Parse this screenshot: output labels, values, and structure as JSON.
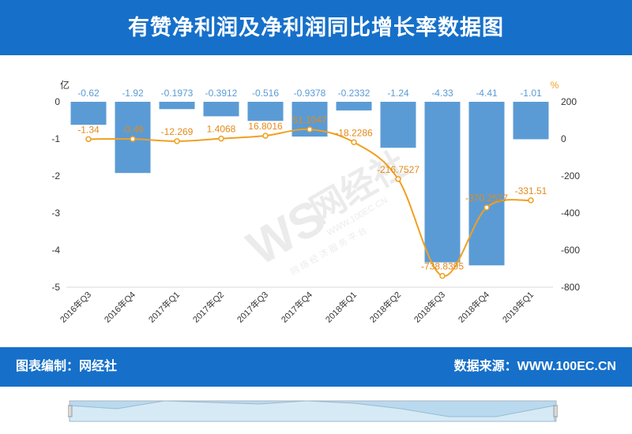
{
  "header": {
    "title": "有赞净利润及净利润同比增长率数据图"
  },
  "footer": {
    "left": "图表编制：网经社",
    "right": "数据来源：WWW.100EC.CN"
  },
  "watermark": {
    "brand_text": "网经社",
    "url": "WWW.100EC.CN",
    "slogan": "网 络 经 济 服 务 平 台"
  },
  "colors": {
    "band": "#1670c9",
    "bar": "#5b9bd5",
    "line": "#f0a020",
    "bar_label": "#5b9bd5",
    "line_label": "#e38a1a"
  },
  "chart_data": {
    "type": "bar",
    "categories": [
      "2016年Q3",
      "2016年Q4",
      "2017年Q1",
      "2017年Q2",
      "2017年Q3",
      "2017年Q4",
      "2018年Q1",
      "2018年Q2",
      "2018年Q3",
      "2018年Q4",
      "2019年Q1"
    ],
    "series": [
      {
        "type": "bar",
        "axis": "left",
        "values": [
          -0.62,
          -1.92,
          -0.1973,
          -0.3912,
          -0.516,
          -0.9378,
          -0.2332,
          -1.24,
          -4.33,
          -4.41,
          -1.01
        ],
        "labels": [
          "-0.62",
          "-1.92",
          "-0.1973",
          "-0.3912",
          "-0.516",
          "-0.9378",
          "-0.2332",
          "-1.24",
          "-4.33",
          "-4.41",
          "-1.01"
        ]
      },
      {
        "type": "line",
        "axis": "right",
        "smooth": true,
        "values": [
          -1.34,
          -0.49,
          -12.269,
          1.4068,
          16.8016,
          51.1047,
          -18.2286,
          -216.7527,
          -738.8395,
          -370.2527,
          -331.51
        ],
        "labels": [
          "-1.34",
          "-0.49",
          "-12.269",
          "1.4068",
          "16.8016",
          "51.1047",
          "-18.2286",
          "-216.7527",
          "-738.8395",
          "-370.2527",
          "-331.51"
        ]
      }
    ],
    "y_left": {
      "unit": "亿",
      "ylim": [
        -5,
        0
      ],
      "ticks": [
        0,
        -1,
        -2,
        -3,
        -4,
        -5
      ]
    },
    "y_right": {
      "unit": "%",
      "ylim": [
        -800,
        200
      ],
      "ticks": [
        200,
        0,
        -200,
        -400,
        -600,
        -800
      ]
    },
    "grid": false
  }
}
